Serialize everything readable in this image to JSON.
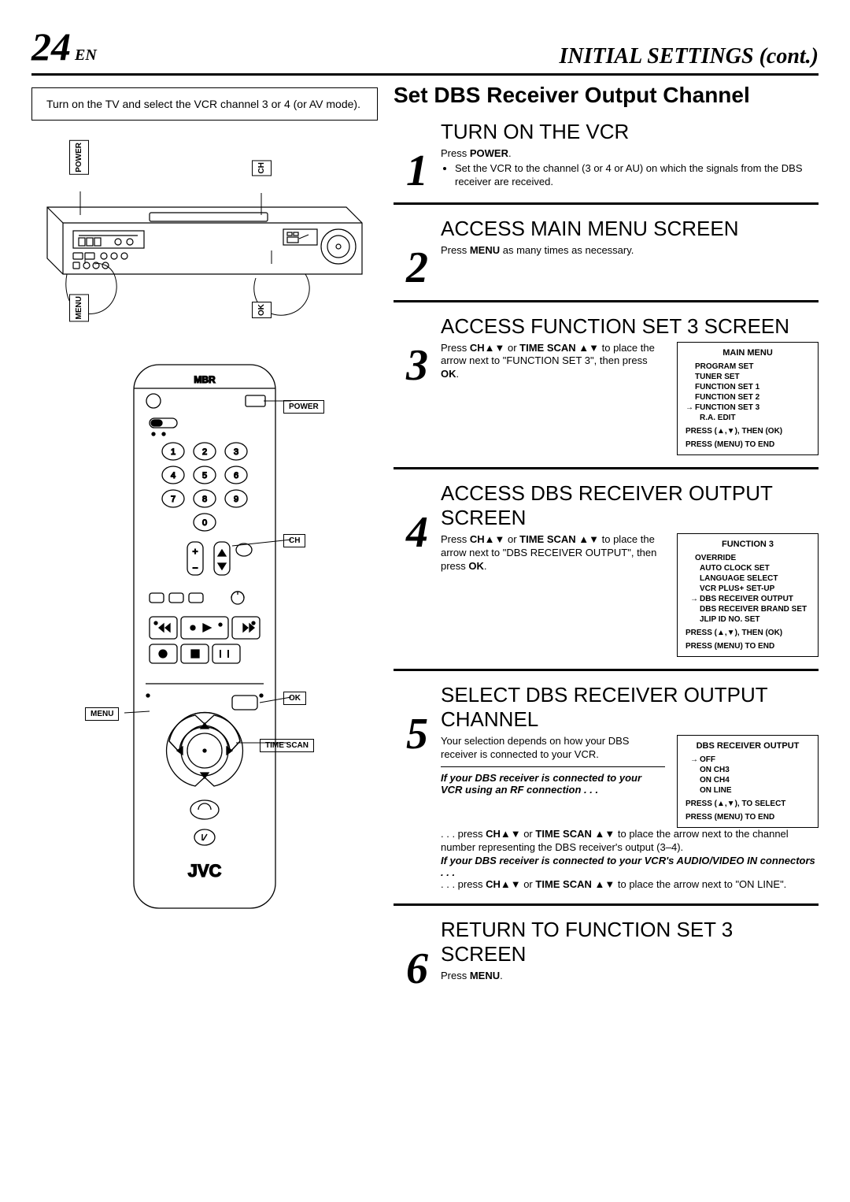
{
  "page": {
    "number": "24",
    "lang": "EN",
    "header": "INITIAL SETTINGS (cont.)"
  },
  "tip": "Turn on the TV and select the VCR channel 3 or 4 (or AV mode).",
  "section_title": "Set DBS Receiver Output Channel",
  "vcr_labels": {
    "power": "POWER",
    "ch": "CH",
    "menu": "MENU",
    "ok": "OK"
  },
  "remote_labels": {
    "power": "POWER",
    "ch": "CH",
    "ok": "OK",
    "menu": "MENU",
    "time_scan": "TIME SCAN",
    "brand": "JVC",
    "mbr": "MBR"
  },
  "steps": [
    {
      "n": "1",
      "title": "TURN ON THE VCR",
      "press_html": "Press <b>POWER</b>.",
      "bullets": [
        "Set the VCR to the channel (3 or 4 or AU) on which the signals from the DBS receiver are received."
      ]
    },
    {
      "n": "2",
      "title": "ACCESS MAIN MENU SCREEN",
      "press_html": "Press <b>MENU</b> as many times as necessary."
    },
    {
      "n": "3",
      "title": "ACCESS FUNCTION SET 3 SCREEN",
      "press_html": "Press <b>CH▲▼</b> or <b>TIME SCAN ▲▼</b> to place the arrow next to \"FUNCTION SET 3\", then press <b>OK</b>.",
      "menu": {
        "title": "MAIN MENU",
        "items": [
          "PROGRAM SET",
          "TUNER SET",
          "FUNCTION SET 1",
          "FUNCTION SET 2",
          "FUNCTION SET 3",
          "R.A. EDIT"
        ],
        "selected_idx": 4,
        "indent_idx": 5,
        "footer": [
          "PRESS (▲,▼), THEN (OK)",
          "PRESS (MENU) TO END"
        ]
      }
    },
    {
      "n": "4",
      "title": "ACCESS DBS RECEIVER OUTPUT SCREEN",
      "press_html": "Press <b>CH▲▼</b> or <b>TIME SCAN ▲▼</b> to place the arrow next to \"DBS RECEIVER OUTPUT\", then press <b>OK</b>.",
      "menu": {
        "title": "FUNCTION 3",
        "items": [
          "OVERRIDE",
          "AUTO CLOCK SET",
          "LANGUAGE SELECT",
          "VCR PLUS+ SET-UP",
          "DBS RECEIVER OUTPUT",
          "DBS RECEIVER BRAND SET",
          "JLIP ID NO. SET"
        ],
        "selected_idx": 4,
        "indent_start": 1,
        "footer": [
          "PRESS (▲,▼), THEN (OK)",
          "PRESS (MENU) TO END"
        ]
      }
    },
    {
      "n": "5",
      "title": "SELECT DBS RECEIVER OUTPUT CHANNEL",
      "intro": "Your selection depends on how your DBS receiver is connected to your VCR.",
      "sub1_italic": "If your DBS receiver is connected to your VCR using an RF connection . . .",
      "sub1_text": ". . . press <b>CH▲▼</b> or <b>TIME SCAN ▲▼</b> to place the arrow next to the channel number representing the DBS receiver's output (3–4).",
      "sub2_italic": "If your DBS receiver is connected to your VCR's AUDIO/VIDEO IN connectors . . .",
      "sub2_text": ". . . press <b>CH▲▼</b> or <b>TIME SCAN ▲▼</b> to place the arrow next to \"ON LINE\".",
      "menu": {
        "title": "DBS RECEIVER OUTPUT",
        "items": [
          "OFF",
          "ON CH3",
          "ON CH4",
          "ON LINE"
        ],
        "selected_idx": 0,
        "indent_start": 0,
        "footer": [
          "PRESS (▲,▼), TO SELECT",
          "PRESS (MENU) TO END"
        ]
      }
    },
    {
      "n": "6",
      "title": "RETURN TO FUNCTION SET 3 SCREEN",
      "press_html": "Press <b>MENU</b>."
    }
  ]
}
